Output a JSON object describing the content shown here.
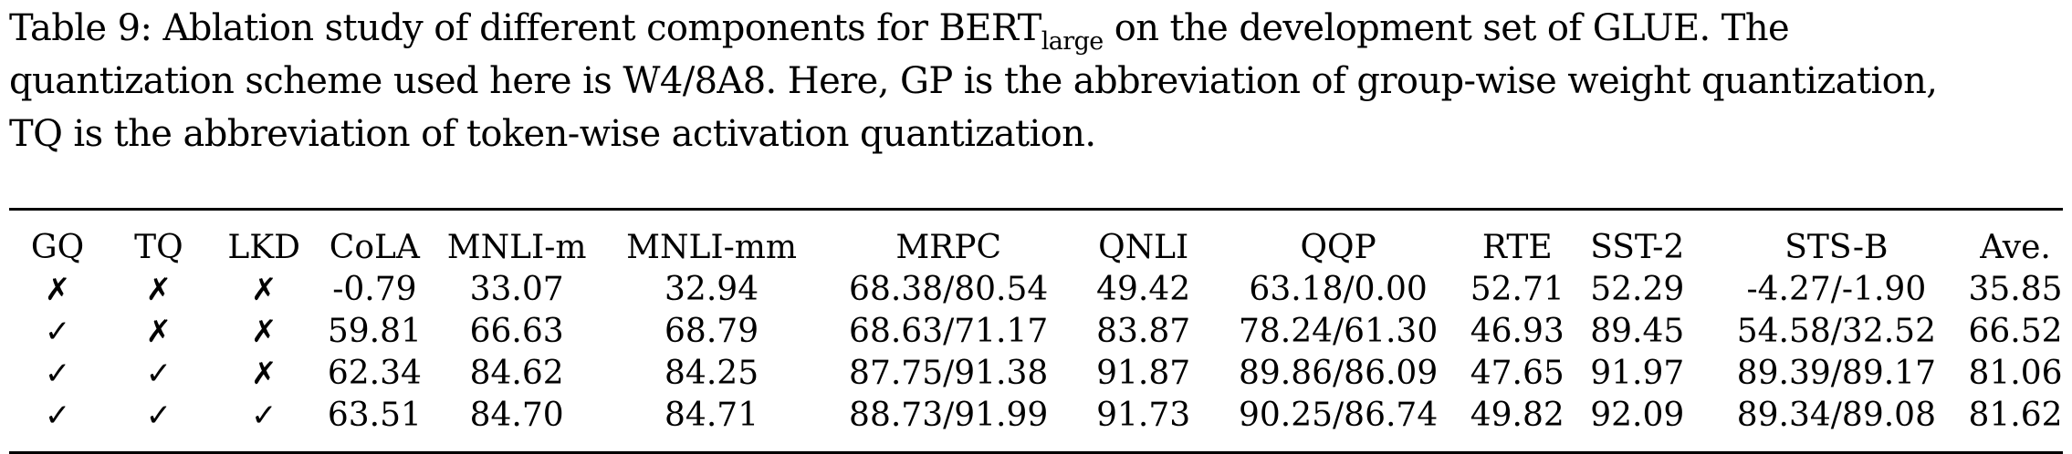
{
  "caption": {
    "prefix": "Table 9:  Ablation study of different components for BERT",
    "subscript": "large",
    "line1_rest": " on the development set of GLUE. The",
    "line2": "quantization scheme used here is W4/8A8. Here, GP is the abbreviation of group-wise weight quantization,",
    "line3": "TQ is the abbreviation of token-wise activation quantization."
  },
  "table": {
    "headers": [
      "GQ",
      "TQ",
      "LKD",
      "CoLA",
      "MNLI-m",
      "MNLI-mm",
      "MRPC",
      "QNLI",
      "QQP",
      "RTE",
      "SST-2",
      "STS-B",
      "Ave."
    ],
    "rows": [
      [
        "✗",
        "✗",
        "✗",
        "-0.79",
        "33.07",
        "32.94",
        "68.38/80.54",
        "49.42",
        "63.18/0.00",
        "52.71",
        "52.29",
        "-4.27/-1.90",
        "35.85"
      ],
      [
        "✓",
        "✗",
        "✗",
        "59.81",
        "66.63",
        "68.79",
        "68.63/71.17",
        "83.87",
        "78.24/61.30",
        "46.93",
        "89.45",
        "54.58/32.52",
        "66.52"
      ],
      [
        "✓",
        "✓",
        "✗",
        "62.34",
        "84.62",
        "84.25",
        "87.75/91.38",
        "91.87",
        "89.86/86.09",
        "47.65",
        "91.97",
        "89.39/89.17",
        "81.06"
      ],
      [
        "✓",
        "✓",
        "✓",
        "63.51",
        "84.70",
        "84.71",
        "88.73/91.99",
        "91.73",
        "90.25/86.74",
        "49.82",
        "92.09",
        "89.34/89.08",
        "81.62"
      ]
    ]
  }
}
